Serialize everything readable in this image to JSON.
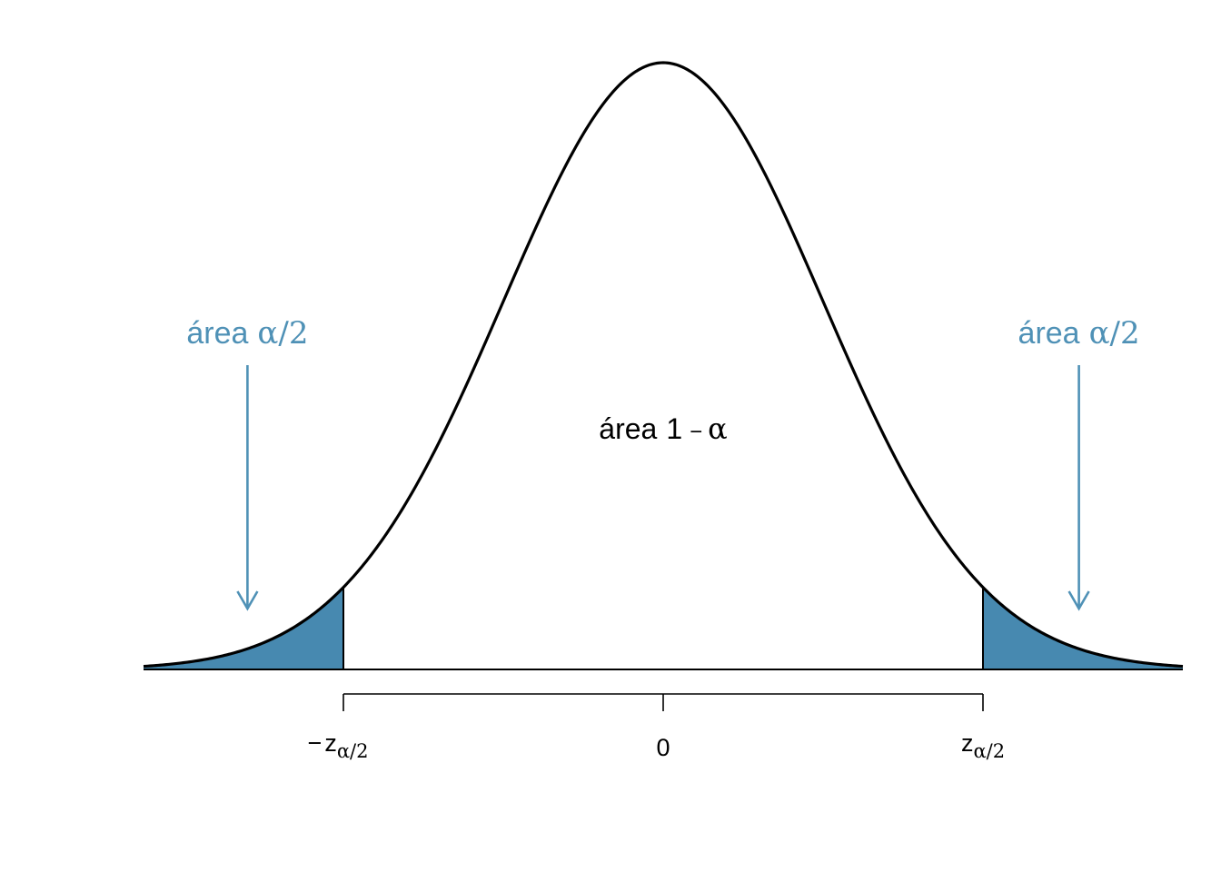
{
  "colors": {
    "tail_fill": "#4789b0",
    "annotation": "#4f91b6",
    "curve": "#000000"
  },
  "chart_data": {
    "type": "area",
    "distribution": "standard normal",
    "x_range": [
      -3.25,
      3.25
    ],
    "critical_value": 2.0,
    "shaded_regions": [
      {
        "name": "left tail",
        "from": -3.25,
        "to": -2.0
      },
      {
        "name": "right tail",
        "from": 2.0,
        "to": 3.25
      }
    ],
    "tick_values": [
      -2.0,
      0,
      2.0
    ],
    "ticks": {
      "left": {
        "sign": "−",
        "base": "z",
        "sub": "α/2"
      },
      "center": "0",
      "right": {
        "base": "z",
        "sub": "α/2"
      }
    },
    "annotations": {
      "left_tail": {
        "word": "área",
        "expr": "α/2"
      },
      "right_tail": {
        "word": "área",
        "expr": "α/2"
      },
      "center": {
        "word": "área",
        "num": "1",
        "op": "−",
        "alpha": "α"
      }
    }
  }
}
